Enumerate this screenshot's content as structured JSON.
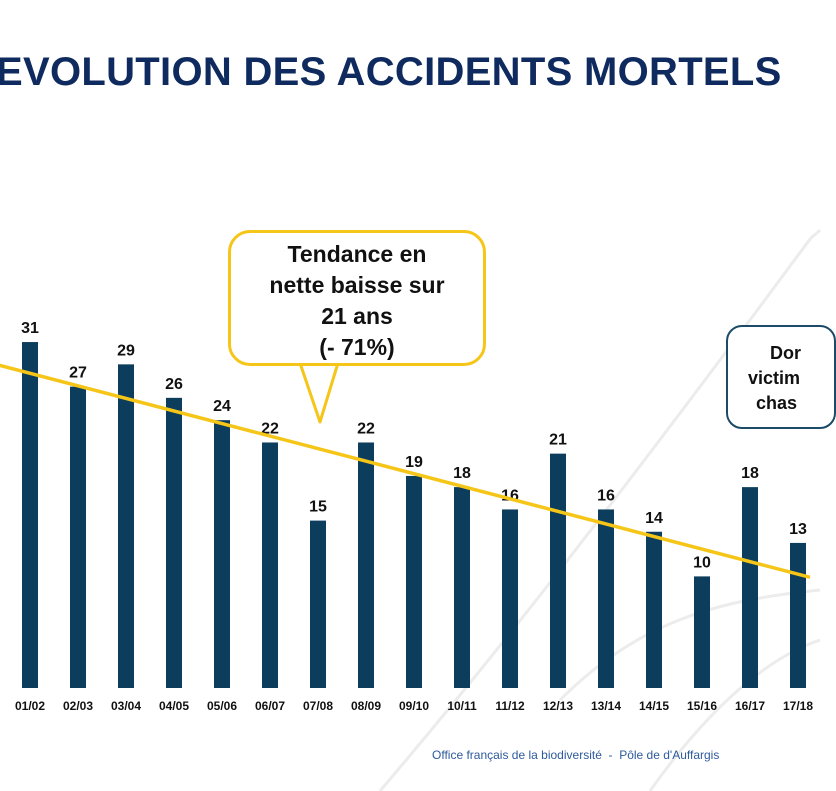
{
  "chart_data": {
    "type": "bar",
    "title": "EVOLUTION DES ACCIDENTS MORTELS",
    "categories": [
      "01/02",
      "02/03",
      "03/04",
      "04/05",
      "05/06",
      "06/07",
      "07/08",
      "08/09",
      "09/10",
      "10/11",
      "11/12",
      "12/13",
      "13/14",
      "14/15",
      "15/16",
      "16/17",
      "17/18"
    ],
    "values": [
      31,
      27,
      29,
      26,
      24,
      22,
      15,
      22,
      19,
      18,
      16,
      21,
      16,
      14,
      10,
      18,
      13
    ],
    "data_labels": [
      "31",
      "27",
      "29",
      "26",
      "24",
      "22",
      "15",
      "22",
      "19",
      "18",
      "16",
      "21",
      "16",
      "14",
      "10",
      "18",
      "13"
    ],
    "trendline": {
      "start_value": 28.2,
      "end_value": 10.2
    },
    "ylim": [
      0,
      32
    ],
    "grid": false,
    "colors": {
      "bar": "#0d3d5c",
      "trend": "#f5c518",
      "title": "#0f2a5e"
    }
  },
  "callouts": {
    "trend_lines": [
      "Tendance en",
      "nette baisse sur",
      "21 ans",
      "(- 71%)"
    ],
    "note_lines": [
      "Dor",
      "victim",
      "chas"
    ]
  },
  "footer": "Office français de la biodiversité  -  Pôle de d'Auffargis"
}
